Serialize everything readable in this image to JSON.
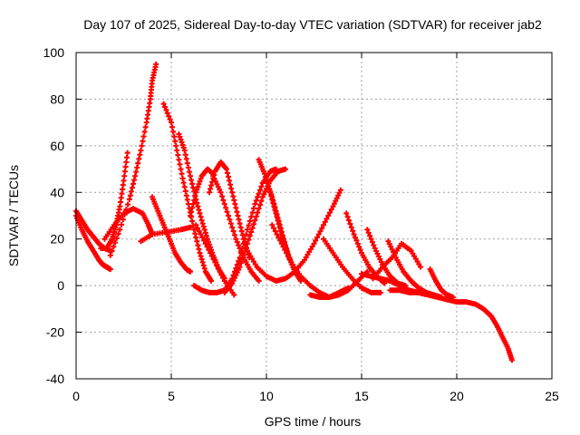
{
  "chart_data": {
    "type": "scatter",
    "title": "Day 107 of 2025, Sidereal Day-to-day VTEC variation (SDTVAR) for receiver jab2",
    "xlabel": "GPS time / hours",
    "ylabel": "SDTVAR / TECUs",
    "xlim": [
      0,
      25
    ],
    "ylim": [
      -40,
      100
    ],
    "xticks": [
      0,
      5,
      10,
      15,
      20,
      25
    ],
    "yticks": [
      -40,
      -20,
      0,
      20,
      40,
      60,
      80,
      100
    ],
    "xtick_labels": [
      "0",
      "5",
      "10",
      "15",
      "20",
      "25"
    ],
    "ytick_labels": [
      "-40",
      "-20",
      "0",
      "20",
      "40",
      "60",
      "80",
      "100"
    ],
    "grid": true,
    "legend": "none",
    "marker": "plus",
    "series_color": "#ff0000",
    "series": [
      {
        "x": [
          0,
          0.3,
          0.6,
          0.9,
          1.2,
          1.5,
          1.8
        ],
        "y": [
          32,
          28,
          24,
          21,
          18,
          16,
          15
        ]
      },
      {
        "x": [
          0,
          0.3,
          0.6,
          0.9,
          1.2,
          1.4,
          1.6,
          1.8
        ],
        "y": [
          30,
          24,
          19,
          15,
          11,
          9,
          8,
          7
        ]
      },
      {
        "x": [
          1.3,
          1.6,
          1.9,
          2.1,
          2.3,
          2.5,
          2.7
        ],
        "y": [
          16,
          16,
          20,
          26,
          34,
          45,
          57
        ]
      },
      {
        "x": [
          1.5,
          2.0,
          2.5,
          3.0,
          3.5,
          3.8,
          4.0
        ],
        "y": [
          20,
          26,
          31,
          33,
          31,
          26,
          22
        ]
      },
      {
        "x": [
          1.8,
          2.3,
          2.8,
          3.1,
          3.4,
          3.7,
          3.9,
          4.0,
          4.2
        ],
        "y": [
          13,
          24,
          37,
          47,
          58,
          70,
          80,
          88,
          95
        ]
      },
      {
        "x": [
          3.4,
          4.0,
          4.8,
          5.5,
          6.0
        ],
        "y": [
          19,
          22,
          23,
          24,
          25
        ]
      },
      {
        "x": [
          4.0,
          4.3,
          4.6,
          4.9,
          5.2,
          5.5,
          5.8,
          6.0
        ],
        "y": [
          38,
          32,
          26,
          20,
          14,
          10,
          7,
          6
        ]
      },
      {
        "x": [
          4.6,
          5.0,
          5.3,
          5.6,
          5.9,
          6.2,
          6.5,
          6.8,
          7.1
        ],
        "y": [
          78,
          70,
          58,
          46,
          35,
          24,
          14,
          6,
          2
        ]
      },
      {
        "x": [
          5.4,
          5.7,
          6.0,
          6.3,
          6.6,
          6.9,
          7.2,
          7.5,
          7.8
        ],
        "y": [
          65,
          58,
          47,
          37,
          28,
          20,
          13,
          7,
          3
        ]
      },
      {
        "x": [
          6.0,
          6.3,
          6.6,
          6.9,
          7.2
        ],
        "y": [
          30,
          40,
          47,
          50,
          48
        ]
      },
      {
        "x": [
          7.0,
          7.3,
          7.6,
          7.9,
          8.2,
          8.5,
          8.8,
          9.1
        ],
        "y": [
          40,
          49,
          53,
          50,
          40,
          30,
          20,
          12
        ]
      },
      {
        "x": [
          6.3,
          6.8,
          7.3,
          7.8,
          8.3
        ],
        "y": [
          26,
          18,
          10,
          2,
          -4
        ]
      },
      {
        "x": [
          7.2,
          7.6,
          8.0,
          8.4,
          8.8,
          9.2,
          9.6
        ],
        "y": [
          47,
          40,
          30,
          20,
          12,
          6,
          2
        ]
      },
      {
        "x": [
          6.2,
          6.6,
          7.0,
          7.4,
          7.8,
          8.2,
          8.6,
          9.0,
          9.4,
          9.8,
          10.2,
          10.5
        ],
        "y": [
          0,
          -2,
          -3,
          -3,
          -2,
          3,
          12,
          24,
          35,
          44,
          49,
          50
        ]
      },
      {
        "x": [
          7.8,
          8.2,
          8.6,
          9.0,
          9.4,
          9.8,
          10.2,
          10.6,
          11.0
        ],
        "y": [
          -3,
          1,
          8,
          18,
          28,
          38,
          45,
          49,
          50
        ]
      },
      {
        "x": [
          9.6,
          9.9,
          10.2,
          10.5,
          10.8,
          11.1,
          11.4,
          11.7
        ],
        "y": [
          54,
          48,
          40,
          31,
          22,
          14,
          8,
          4
        ]
      },
      {
        "x": [
          10.0,
          10.3,
          10.6,
          10.9,
          11.2,
          11.5,
          11.8
        ],
        "y": [
          45,
          38,
          29,
          20,
          12,
          6,
          2
        ]
      },
      {
        "x": [
          9.0,
          9.5,
          10.0,
          10.5,
          11.0,
          11.5,
          12.0,
          12.5,
          13.0,
          13.5,
          13.9
        ],
        "y": [
          15,
          8,
          4,
          2,
          3,
          6,
          11,
          18,
          26,
          34,
          41
        ]
      },
      {
        "x": [
          10.3,
          10.8,
          11.3,
          11.8,
          12.3,
          12.8,
          13.3,
          13.8,
          14.3,
          14.8,
          15.3
        ],
        "y": [
          26,
          18,
          10,
          4,
          0,
          -3,
          -5,
          -4,
          -2,
          2,
          6
        ]
      },
      {
        "x": [
          12.3,
          12.8,
          13.3,
          13.8,
          14.3
        ],
        "y": [
          -4,
          -5,
          -5,
          -3,
          -1
        ]
      },
      {
        "x": [
          13.0,
          13.5,
          14.0,
          14.5,
          15.0,
          15.5,
          16.0
        ],
        "y": [
          20,
          14,
          8,
          3,
          -1,
          -3,
          -3
        ]
      },
      {
        "x": [
          14.2,
          14.6,
          15.0,
          15.4,
          15.8,
          16.2
        ],
        "y": [
          31,
          22,
          14,
          8,
          4,
          1
        ]
      },
      {
        "x": [
          15.3,
          15.7,
          16.1,
          16.5,
          16.9,
          17.3
        ],
        "y": [
          24,
          16,
          9,
          4,
          1,
          0
        ]
      },
      {
        "x": [
          15.0,
          15.5,
          16.0,
          16.5,
          17.0,
          17.5,
          18.0,
          18.5
        ],
        "y": [
          5,
          4,
          3,
          2,
          0,
          -2,
          -3,
          -4
        ]
      },
      {
        "x": [
          15.6,
          16.1,
          16.6,
          17.1,
          17.6,
          18.1
        ],
        "y": [
          3,
          8,
          12,
          18,
          15,
          8
        ]
      },
      {
        "x": [
          16.4,
          16.8,
          17.2,
          17.6,
          18.0,
          18.4,
          18.8,
          19.2
        ],
        "y": [
          19,
          12,
          6,
          2,
          -1,
          -3,
          -4,
          -5
        ]
      },
      {
        "x": [
          16.5,
          17.0,
          17.5,
          18.0,
          18.5,
          19.0,
          19.5
        ],
        "y": [
          -2,
          -2,
          -3,
          -3,
          -4,
          -5,
          -6
        ]
      },
      {
        "x": [
          18.6,
          18.9,
          19.2,
          19.5,
          19.8
        ],
        "y": [
          7,
          2,
          -2,
          -4,
          -5
        ]
      },
      {
        "x": [
          19.5,
          20.0,
          20.5,
          21.0,
          21.4,
          21.8,
          22.1,
          22.4,
          22.7,
          22.9
        ],
        "y": [
          -6,
          -7,
          -7,
          -8,
          -10,
          -13,
          -17,
          -22,
          -27,
          -32
        ]
      }
    ]
  }
}
